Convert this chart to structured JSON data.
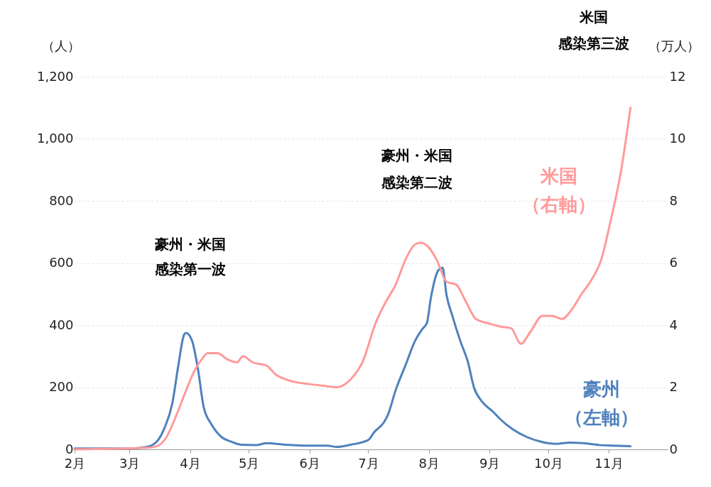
{
  "chart_data": {
    "type": "line",
    "ylabel": "（人）",
    "y2label": "（万人）",
    "xlim": [
      "--02-01",
      "--12-01"
    ],
    "xticks": [
      {
        "value": "--02-01",
        "label": "2月"
      },
      {
        "value": "--03-01",
        "label": "3月"
      },
      {
        "value": "--04-01",
        "label": "4月"
      },
      {
        "value": "--05-01",
        "label": "5月"
      },
      {
        "value": "--06-01",
        "label": "6月"
      },
      {
        "value": "--07-01",
        "label": "7月"
      },
      {
        "value": "--08-01",
        "label": "8月"
      },
      {
        "value": "--09-01",
        "label": "9月"
      },
      {
        "value": "--10-01",
        "label": "10月"
      },
      {
        "value": "--11-01",
        "label": "11月"
      }
    ],
    "ylim": [
      0,
      1200
    ],
    "yticks": [
      0,
      200,
      400,
      600,
      800,
      {
        "value": 1000,
        "label": "1,000"
      },
      {
        "value": 1200,
        "label": "1,200"
      }
    ],
    "y2lim": [
      0,
      12
    ],
    "y2ticks": [
      0,
      2,
      4,
      6,
      8,
      10,
      12
    ],
    "grid": "y",
    "series": [
      {
        "name": "豪州（左軸）",
        "color": "#4f81bd",
        "x": [
          "--02-01",
          "--03-01",
          "--03-10",
          "--03-15",
          "--03-19",
          "--03-23",
          "--03-26",
          "--03-29",
          "--03-30",
          "--04-02",
          "--04-05",
          "--04-08",
          "--04-12",
          "--04-17",
          "--04-22",
          "--04-27",
          "--05-05",
          "--05-10",
          "--05-20",
          "--06-01",
          "--06-10",
          "--06-15",
          "--06-22",
          "--07-01",
          "--07-04",
          "--07-09",
          "--07-11",
          "--07-15",
          "--07-20",
          "--07-25",
          "--07-29",
          "--07-31",
          "--08-02",
          "--08-06",
          "--08-08",
          "--08-10",
          "--08-13",
          "--08-17",
          "--08-21",
          "--08-24",
          "--08-28",
          "--09-03",
          "--09-06",
          "--09-13",
          "--09-20",
          "--09-27",
          "--10-05",
          "--10-12",
          "--10-19",
          "--10-27",
          "--11-03",
          "--11-12"
        ],
        "values": [
          3,
          3,
          8,
          25,
          70,
          150,
          270,
          370,
          375,
          350,
          260,
          135,
          80,
          40,
          25,
          15,
          14,
          20,
          15,
          12,
          12,
          8,
          15,
          30,
          55,
          87,
          110,
          190,
          270,
          350,
          390,
          407,
          487,
          578,
          585,
          498,
          430,
          350,
          280,
          200,
          155,
          120,
          100,
          64,
          40,
          25,
          18,
          22,
          20,
          14,
          12,
          10
        ]
      },
      {
        "name": "米国（右軸）",
        "color": "#ff9a9a",
        "axis": "y2",
        "x": [
          "--02-01",
          "--03-10",
          "--03-15",
          "--03-20",
          "--03-25",
          "--03-30",
          "--04-03",
          "--04-07",
          "--04-10",
          "--04-15",
          "--04-20",
          "--04-25",
          "--04-28",
          "--05-03",
          "--05-10",
          "--05-15",
          "--05-20",
          "--06-01",
          "--06-08",
          "--06-15",
          "--06-22",
          "--06-28",
          "--07-05",
          "--07-10",
          "--07-15",
          "--07-20",
          "--07-25",
          "--07-28",
          "--08-01",
          "--08-05",
          "--08-10",
          "--08-15",
          "--08-20",
          "--08-25",
          "--09-01",
          "--09-07",
          "--09-12",
          "--09-17",
          "--09-22",
          "--09-28",
          "--10-03",
          "--10-08",
          "--10-13",
          "--10-18",
          "--10-23",
          "--10-28",
          "--11-02",
          "--11-07",
          "--11-12"
        ],
        "values": [
          0,
          0.05,
          0.1,
          0.4,
          1.1,
          1.9,
          2.5,
          2.9,
          3.1,
          3.1,
          2.9,
          2.8,
          3.0,
          2.8,
          2.7,
          2.4,
          2.25,
          2.1,
          2.05,
          2.0,
          2.25,
          2.8,
          4.1,
          4.75,
          5.3,
          6.1,
          6.6,
          6.65,
          6.5,
          6.1,
          5.4,
          5.3,
          4.75,
          4.2,
          4.05,
          3.95,
          3.9,
          3.4,
          3.8,
          4.3,
          4.3,
          4.2,
          4.5,
          5.0,
          5.45,
          6.1,
          7.4,
          8.9,
          11.0
        ]
      }
    ],
    "annotations": [
      "豪州・米国",
      "感染第一波",
      "豪州・米国",
      "感染第二波",
      "米国",
      "感染第三波"
    ]
  }
}
